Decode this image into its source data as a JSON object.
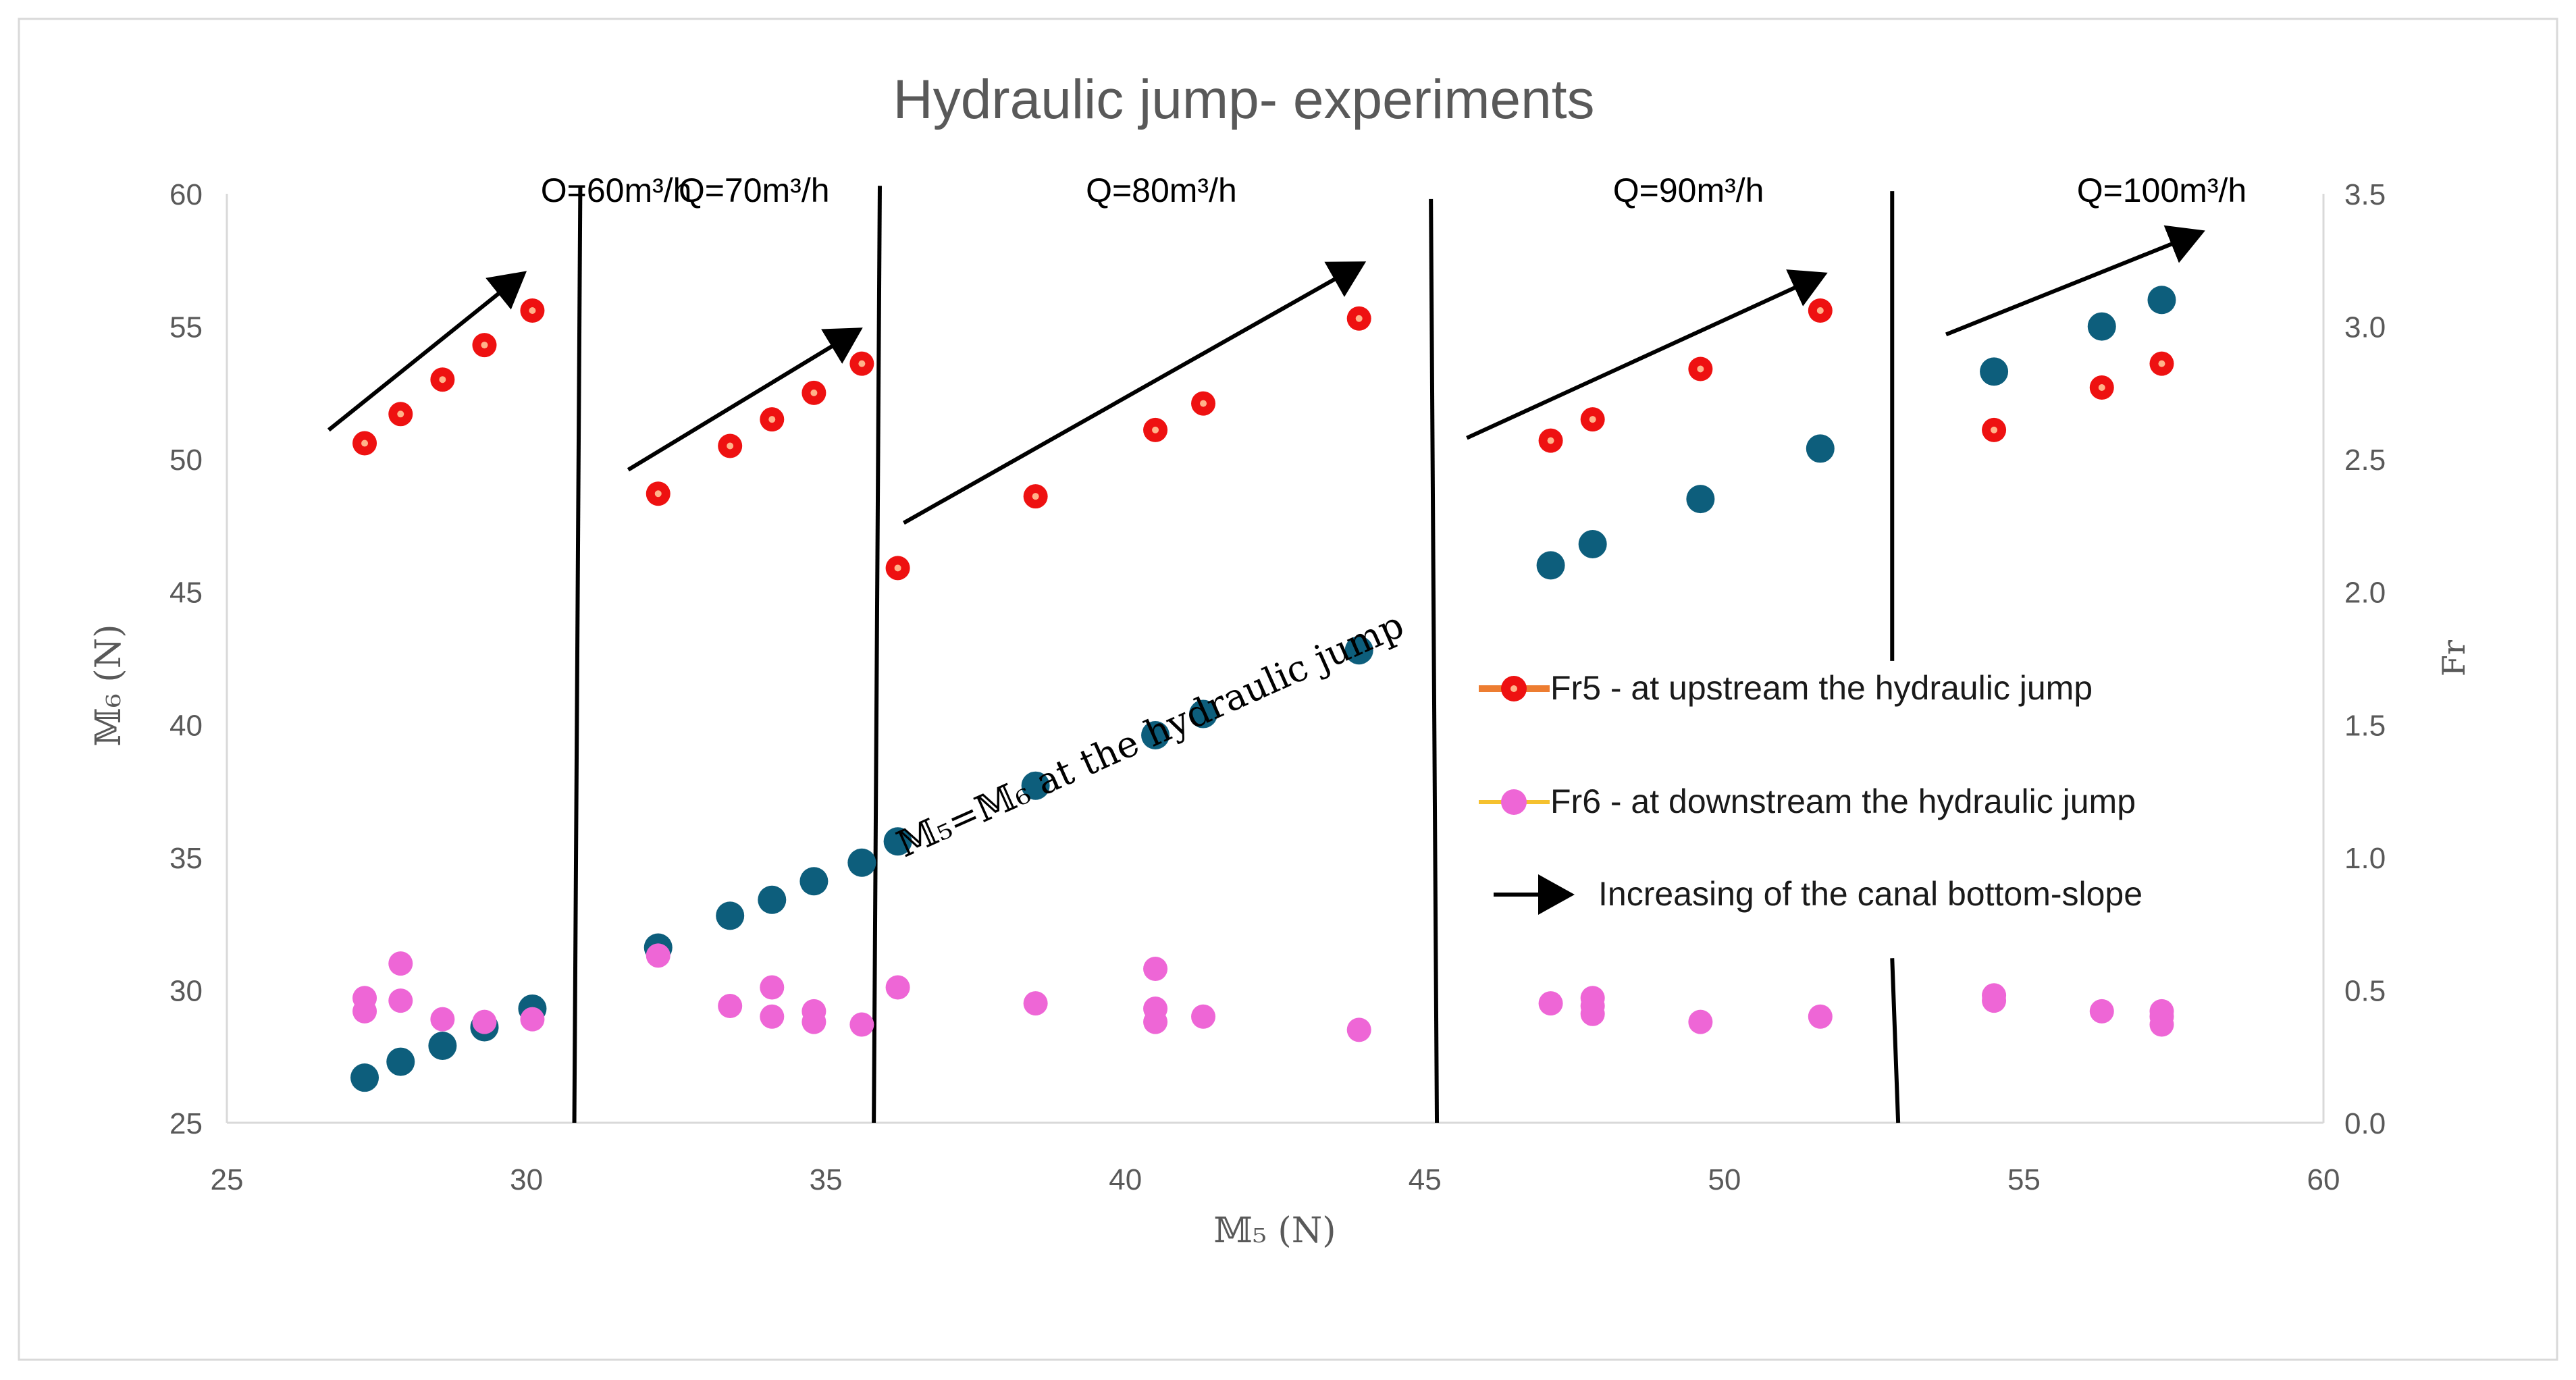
{
  "chart_data": {
    "type": "scatter",
    "title": "Hydraulic jump- experiments",
    "xlabel": "𝕄₅ (N)",
    "ylabel_left": "𝕄₆ (N)",
    "ylabel_right": "Fr",
    "xlim": [
      25,
      60
    ],
    "ylim_left": [
      25,
      60
    ],
    "ylim_right": [
      0,
      3.5
    ],
    "x_ticks": [
      "25",
      "30",
      "35",
      "40",
      "45",
      "50",
      "55",
      "60"
    ],
    "y_left_ticks": [
      "25",
      "30",
      "35",
      "40",
      "45",
      "50",
      "55",
      "60"
    ],
    "y_right_ticks": [
      "0.0",
      "0.5",
      "1.0",
      "1.5",
      "2.0",
      "2.5",
      "3.0",
      "3.5"
    ],
    "grid": false,
    "groups": [
      {
        "label": "O=60m³/h",
        "label_x": 31.5,
        "label_y": 3.5
      },
      {
        "label": "Q=70m³/h",
        "label_x": 33.8,
        "label_y": 3.5
      },
      {
        "label": "Q=80m³/h",
        "label_x": 40.6,
        "label_y": 3.5
      },
      {
        "label": "Q=90m³/h",
        "label_x": 49.4,
        "label_y": 3.5
      },
      {
        "label": "Q=100m³/h",
        "label_x": 57.3,
        "label_y": 3.5
      }
    ],
    "separators": [
      {
        "x1": 30.9,
        "y1": 3.53,
        "x2": 30.8,
        "y2": 0.0
      },
      {
        "x1": 35.9,
        "y1": 3.53,
        "x2": 35.8,
        "y2": 0.0
      },
      {
        "x1": 45.1,
        "y1": 3.48,
        "x2": 45.2,
        "y2": 0.0
      },
      {
        "x1": 52.8,
        "y1": 3.51,
        "x2": 52.8,
        "y2": 1.74
      },
      {
        "x1": 52.8,
        "y1": 0.62,
        "x2": 52.9,
        "y2": 0.0
      }
    ],
    "arrows": [
      {
        "x1": 26.7,
        "y1": 2.61,
        "x2": 29.9,
        "y2": 3.19
      },
      {
        "x1": 31.7,
        "y1": 2.46,
        "x2": 35.5,
        "y2": 2.98
      },
      {
        "x1": 36.3,
        "y1": 2.26,
        "x2": 43.9,
        "y2": 3.23
      },
      {
        "x1": 45.7,
        "y1": 2.58,
        "x2": 51.6,
        "y2": 3.19
      },
      {
        "x1": 53.7,
        "y1": 2.97,
        "x2": 57.9,
        "y2": 3.35
      }
    ],
    "annotation": {
      "text": "𝕄₅=𝕄₆  at the hydraulic jump",
      "x": 40.5,
      "y": 1.42,
      "angle": -24
    },
    "legend": [
      {
        "marker": "red-ring",
        "text": "Fr5 - at upstream the hydraulic jump"
      },
      {
        "marker": "pink-dot",
        "text": "Fr6 - at downstream the hydraulic jump"
      },
      {
        "marker": "arrow",
        "text": "Increasing of the canal bottom-slope"
      }
    ],
    "series": [
      {
        "name": "M6",
        "axis": "left",
        "color": "#0d5e7c",
        "x": [
          27.3,
          27.9,
          28.6,
          29.3,
          30.1,
          32.2,
          33.4,
          34.1,
          34.8,
          35.6,
          36.2,
          38.5,
          40.5,
          41.3,
          43.9,
          47.1,
          47.8,
          49.6,
          51.6,
          54.5,
          56.3,
          57.3
        ],
        "y": [
          26.7,
          27.3,
          27.9,
          28.6,
          29.3,
          31.6,
          32.8,
          33.4,
          34.1,
          34.8,
          35.6,
          37.7,
          39.6,
          40.4,
          42.8,
          46.0,
          46.8,
          48.5,
          50.4,
          53.3,
          55.0,
          56.0
        ]
      },
      {
        "name": "Fr5 - at upstream the hydraulic jump",
        "axis": "right",
        "color": "#ee1111",
        "x": [
          27.3,
          27.9,
          28.6,
          29.3,
          30.1,
          32.2,
          33.4,
          34.1,
          34.8,
          35.6,
          36.2,
          38.5,
          40.5,
          41.3,
          43.9,
          47.1,
          47.8,
          49.6,
          51.6,
          54.5,
          56.3,
          57.3
        ],
        "y": [
          2.56,
          2.67,
          2.8,
          2.93,
          3.06,
          2.37,
          2.55,
          2.65,
          2.75,
          2.86,
          2.09,
          2.36,
          2.61,
          2.71,
          3.03,
          2.57,
          2.65,
          2.84,
          3.06,
          2.61,
          2.77,
          2.86
        ]
      },
      {
        "name": "Fr6 - at downstream the hydraulic jump",
        "axis": "right",
        "color": "#ee66d6",
        "x": [
          27.3,
          27.3,
          27.9,
          27.9,
          28.6,
          29.3,
          30.1,
          32.2,
          33.4,
          34.1,
          34.1,
          34.8,
          34.8,
          35.6,
          36.2,
          38.5,
          40.5,
          40.5,
          40.5,
          41.3,
          43.9,
          47.1,
          47.8,
          47.8,
          47.8,
          49.6,
          51.6,
          54.5,
          54.5,
          56.3,
          57.3,
          57.3,
          57.3
        ],
        "y": [
          0.47,
          0.42,
          0.6,
          0.46,
          0.39,
          0.38,
          0.39,
          0.63,
          0.44,
          0.51,
          0.4,
          0.42,
          0.38,
          0.37,
          0.51,
          0.45,
          0.58,
          0.43,
          0.38,
          0.4,
          0.35,
          0.45,
          0.47,
          0.44,
          0.41,
          0.38,
          0.4,
          0.48,
          0.46,
          0.42,
          0.42,
          0.4,
          0.37
        ]
      }
    ]
  }
}
